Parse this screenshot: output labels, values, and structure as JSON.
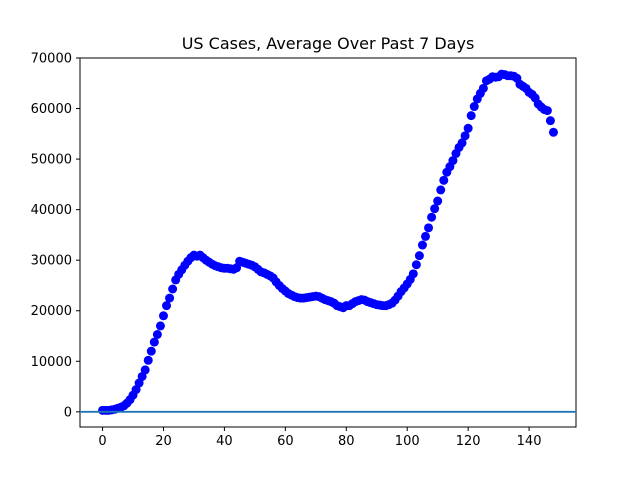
{
  "chart_data": {
    "type": "scatter",
    "title": "US Cases, Average Over Past 7 Days",
    "xlabel": "",
    "ylabel": "",
    "xlim": [
      -7.4,
      155.4
    ],
    "ylim": [
      -3000,
      70000
    ],
    "xticks": [
      0,
      20,
      40,
      60,
      80,
      100,
      120,
      140
    ],
    "yticks": [
      0,
      10000,
      20000,
      30000,
      40000,
      50000,
      60000,
      70000
    ],
    "grid": false,
    "marker_color": "#0000ff",
    "reference_line": {
      "y": 0,
      "color": "#1f77b4"
    },
    "series": [
      {
        "x": [
          0,
          1,
          2,
          3,
          4,
          5,
          6,
          7,
          8,
          9,
          10,
          11,
          12,
          13,
          14,
          15,
          16,
          17,
          18,
          19,
          20,
          21,
          22,
          23,
          24,
          25,
          26,
          27,
          28,
          29,
          30,
          31,
          32,
          33,
          34,
          35,
          36,
          37,
          38,
          39,
          40,
          41,
          42,
          43,
          44,
          45,
          46,
          47,
          48,
          49,
          50,
          51,
          52,
          53,
          54,
          55,
          56,
          57,
          58,
          59,
          60,
          61,
          62,
          63,
          64,
          65,
          66,
          67,
          68,
          69,
          70,
          71,
          72,
          73,
          74,
          75,
          76,
          77,
          78,
          79,
          80,
          81,
          82,
          83,
          84,
          85,
          86,
          87,
          88,
          89,
          90,
          91,
          92,
          93,
          94,
          95,
          96,
          97,
          98,
          99,
          100,
          101,
          102,
          103,
          104,
          105,
          106,
          107,
          108,
          109,
          110,
          111,
          112,
          113,
          114,
          115,
          116,
          117,
          118,
          119,
          120,
          121,
          122,
          123,
          124,
          125,
          126,
          127,
          128,
          129,
          130,
          131,
          132,
          133,
          134,
          135,
          136,
          137,
          138,
          139,
          140,
          141,
          142,
          143,
          144,
          145,
          146,
          147,
          148
        ],
        "y": [
          300,
          300,
          300,
          400,
          500,
          700,
          900,
          1200,
          1700,
          2400,
          3300,
          4400,
          5700,
          7000,
          8300,
          10200,
          12000,
          13800,
          15300,
          17000,
          19000,
          21000,
          22500,
          24300,
          26100,
          27200,
          28100,
          29000,
          29800,
          30500,
          31000,
          30800,
          31000,
          30500,
          30000,
          29600,
          29200,
          28900,
          28700,
          28500,
          28400,
          28400,
          28300,
          28200,
          28500,
          29800,
          29600,
          29400,
          29200,
          29000,
          28700,
          28200,
          27700,
          27500,
          27200,
          26900,
          26500,
          25700,
          25000,
          24400,
          23900,
          23400,
          23100,
          22800,
          22600,
          22500,
          22500,
          22600,
          22700,
          22800,
          22900,
          22800,
          22500,
          22200,
          22000,
          21800,
          21500,
          21000,
          20800,
          20600,
          21000,
          21000,
          21400,
          21800,
          22000,
          22200,
          22100,
          21800,
          21600,
          21400,
          21200,
          21100,
          21000,
          21000,
          21200,
          21500,
          22100,
          22900,
          23800,
          24500,
          25300,
          26200,
          27300,
          29100,
          30900,
          33000,
          34700,
          36400,
          38500,
          40200,
          41700,
          43900,
          45800,
          47400,
          48500,
          49700,
          51100,
          52300,
          53200,
          54600,
          56100,
          58600,
          60400,
          61900,
          63000,
          64000,
          65500,
          65800,
          66300,
          66200,
          66300,
          66800,
          66700,
          66500,
          66500,
          66400,
          66000,
          64800,
          64400,
          64000,
          63200,
          62800,
          62100,
          60900,
          60300,
          59800,
          59600,
          57600,
          55300
        ]
      }
    ]
  }
}
